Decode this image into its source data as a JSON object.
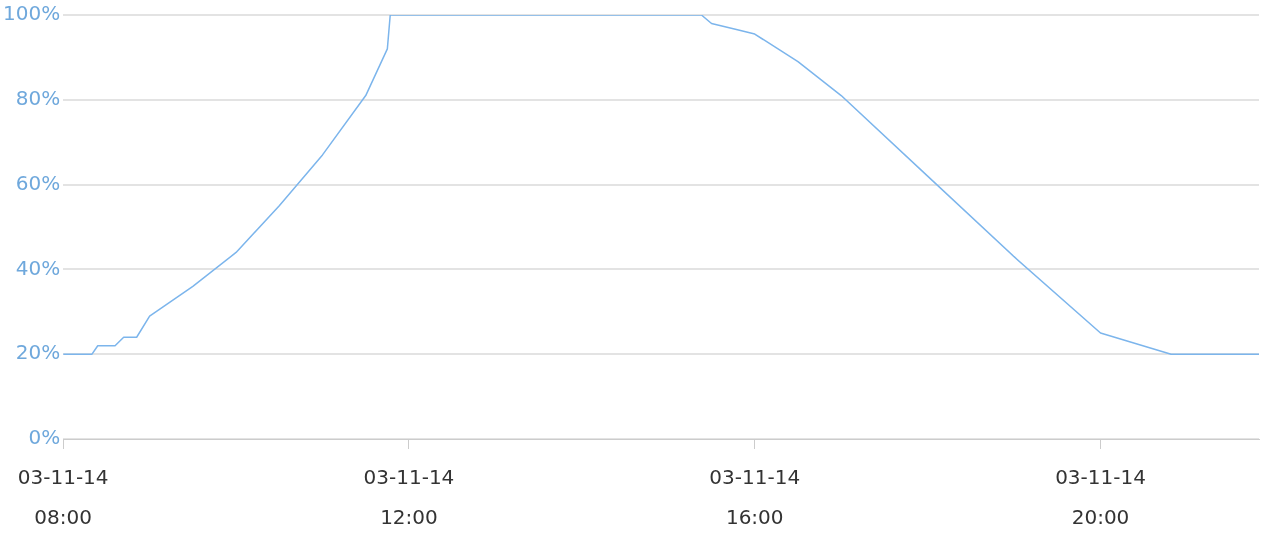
{
  "chart_data": {
    "type": "line",
    "x": [
      "--03-11T08:00",
      "--03-11T08:20",
      "--03-11T08:24",
      "--03-11T08:36",
      "--03-11T08:42",
      "--03-11T08:51",
      "--03-11T09:00",
      "--03-11T09:30",
      "--03-11T10:00",
      "--03-11T10:30",
      "--03-11T11:00",
      "--03-11T11:30",
      "--03-11T11:45",
      "--03-11T11:47",
      "--03-11T15:23",
      "--03-11T15:30",
      "--03-11T15:48",
      "--03-11T16:00",
      "--03-11T16:30",
      "--03-11T17:00",
      "--03-11T18:00",
      "--03-11T19:00",
      "--03-11T20:00",
      "--03-11T20:49",
      "--03-11T21:50"
    ],
    "series": [
      {
        "color": "#7cb5ec",
        "values": [
          20,
          20,
          22,
          22,
          24,
          24,
          29,
          36,
          44,
          55,
          67,
          81,
          92,
          100,
          100,
          98,
          96.5,
          95.5,
          89,
          81,
          62,
          43,
          25,
          20,
          20
        ]
      }
    ],
    "xlim": [
      "--03-11T08:00",
      "--03-11T21:50"
    ],
    "xticks": [
      {
        "value": "--03-11T08:00",
        "label": "03-11-14 08:00"
      },
      {
        "value": "--03-11T12:00",
        "label": "03-11-14 12:00"
      },
      {
        "value": "--03-11T16:00",
        "label": "03-11-14 16:00"
      },
      {
        "value": "--03-11T20:00",
        "label": "03-11-14 20:00"
      }
    ],
    "ylim": [
      0,
      100
    ],
    "yticks": [
      {
        "value": 0,
        "label": "0%"
      },
      {
        "value": 20,
        "label": "20%"
      },
      {
        "value": 40,
        "label": "40%"
      },
      {
        "value": 60,
        "label": "60%"
      },
      {
        "value": 80,
        "label": "80%"
      },
      {
        "value": 100,
        "label": "100%"
      }
    ],
    "grid": "y",
    "legend": false,
    "marker": "none",
    "line_style": "solid"
  }
}
